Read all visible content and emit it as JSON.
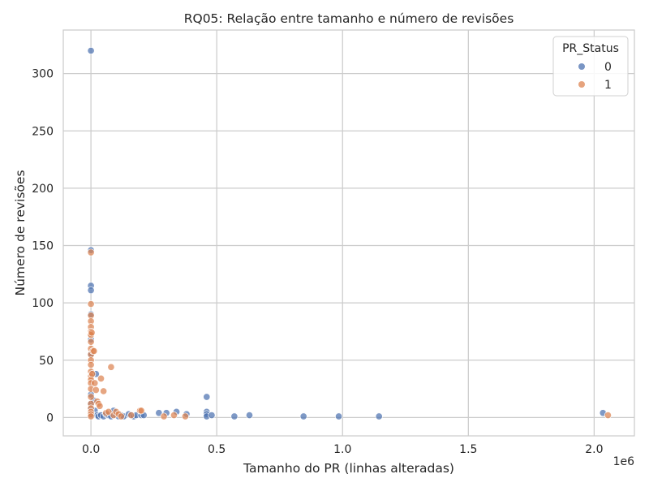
{
  "chart_data": {
    "type": "scatter",
    "title": "RQ05: Relação entre tamanho e número de revisões",
    "xlabel": "Tamanho do PR (linhas alteradas)",
    "ylabel": "Número de revisões",
    "x_offset_label": "1e6",
    "xlim": [
      -110000,
      2160000
    ],
    "ylim": [
      -16,
      338
    ],
    "x_ticks": [
      0,
      0.5,
      1.0,
      1.5,
      2.0
    ],
    "x_tick_labels": [
      "0.0",
      "0.5",
      "1.0",
      "1.5",
      "2.0"
    ],
    "x_tick_scale": 1000000,
    "y_ticks": [
      0,
      50,
      100,
      150,
      200,
      250,
      300
    ],
    "y_tick_labels": [
      "0",
      "50",
      "100",
      "150",
      "200",
      "250",
      "300"
    ],
    "grid": true,
    "legend": {
      "title": "PR_Status",
      "position": "top-right",
      "entries": [
        "0",
        "1"
      ]
    },
    "series": [
      {
        "name": "0",
        "color": "#4c72b0",
        "points": [
          [
            0,
            320
          ],
          [
            0,
            146
          ],
          [
            0,
            115
          ],
          [
            0,
            111
          ],
          [
            0,
            90
          ],
          [
            0,
            68
          ],
          [
            0,
            55
          ],
          [
            0,
            20
          ],
          [
            0,
            12
          ],
          [
            0,
            8
          ],
          [
            0,
            4
          ],
          [
            0,
            2
          ],
          [
            5000,
            38
          ],
          [
            10000,
            15
          ],
          [
            15000,
            6
          ],
          [
            20000,
            38
          ],
          [
            25000,
            2
          ],
          [
            30000,
            1
          ],
          [
            40000,
            2
          ],
          [
            50000,
            1
          ],
          [
            60000,
            3
          ],
          [
            70000,
            2
          ],
          [
            80000,
            1
          ],
          [
            90000,
            6
          ],
          [
            100000,
            2
          ],
          [
            110000,
            1
          ],
          [
            120000,
            2
          ],
          [
            130000,
            1
          ],
          [
            150000,
            3
          ],
          [
            160000,
            2
          ],
          [
            170000,
            1
          ],
          [
            180000,
            2
          ],
          [
            200000,
            2
          ],
          [
            210000,
            2
          ],
          [
            270000,
            4
          ],
          [
            300000,
            4
          ],
          [
            340000,
            5
          ],
          [
            380000,
            3
          ],
          [
            460000,
            18
          ],
          [
            460000,
            5
          ],
          [
            460000,
            3
          ],
          [
            460000,
            1
          ],
          [
            480000,
            2
          ],
          [
            570000,
            1
          ],
          [
            630000,
            2
          ],
          [
            845000,
            1
          ],
          [
            985000,
            1
          ],
          [
            1145000,
            1
          ],
          [
            2035000,
            4
          ]
        ]
      },
      {
        "name": "1",
        "color": "#dd8452",
        "points": [
          [
            0,
            144
          ],
          [
            0,
            99
          ],
          [
            0,
            89
          ],
          [
            0,
            84
          ],
          [
            0,
            79
          ],
          [
            0,
            75
          ],
          [
            0,
            73
          ],
          [
            0,
            72
          ],
          [
            0,
            66
          ],
          [
            0,
            60
          ],
          [
            0,
            55
          ],
          [
            0,
            50
          ],
          [
            0,
            46
          ],
          [
            0,
            40
          ],
          [
            0,
            36
          ],
          [
            0,
            33
          ],
          [
            0,
            30
          ],
          [
            0,
            25
          ],
          [
            0,
            18
          ],
          [
            0,
            12
          ],
          [
            0,
            8
          ],
          [
            0,
            5
          ],
          [
            0,
            3
          ],
          [
            0,
            1
          ],
          [
            3000,
            74
          ],
          [
            5000,
            38
          ],
          [
            8000,
            58
          ],
          [
            12000,
            58
          ],
          [
            15000,
            30
          ],
          [
            20000,
            24
          ],
          [
            25000,
            14
          ],
          [
            30000,
            12
          ],
          [
            35000,
            10
          ],
          [
            40000,
            34
          ],
          [
            50000,
            23
          ],
          [
            60000,
            4
          ],
          [
            70000,
            5
          ],
          [
            80000,
            44
          ],
          [
            90000,
            2
          ],
          [
            100000,
            5
          ],
          [
            110000,
            3
          ],
          [
            120000,
            1
          ],
          [
            160000,
            2
          ],
          [
            195000,
            6
          ],
          [
            200000,
            6
          ],
          [
            290000,
            1
          ],
          [
            330000,
            2
          ],
          [
            375000,
            1
          ],
          [
            2055000,
            2
          ]
        ]
      }
    ]
  }
}
